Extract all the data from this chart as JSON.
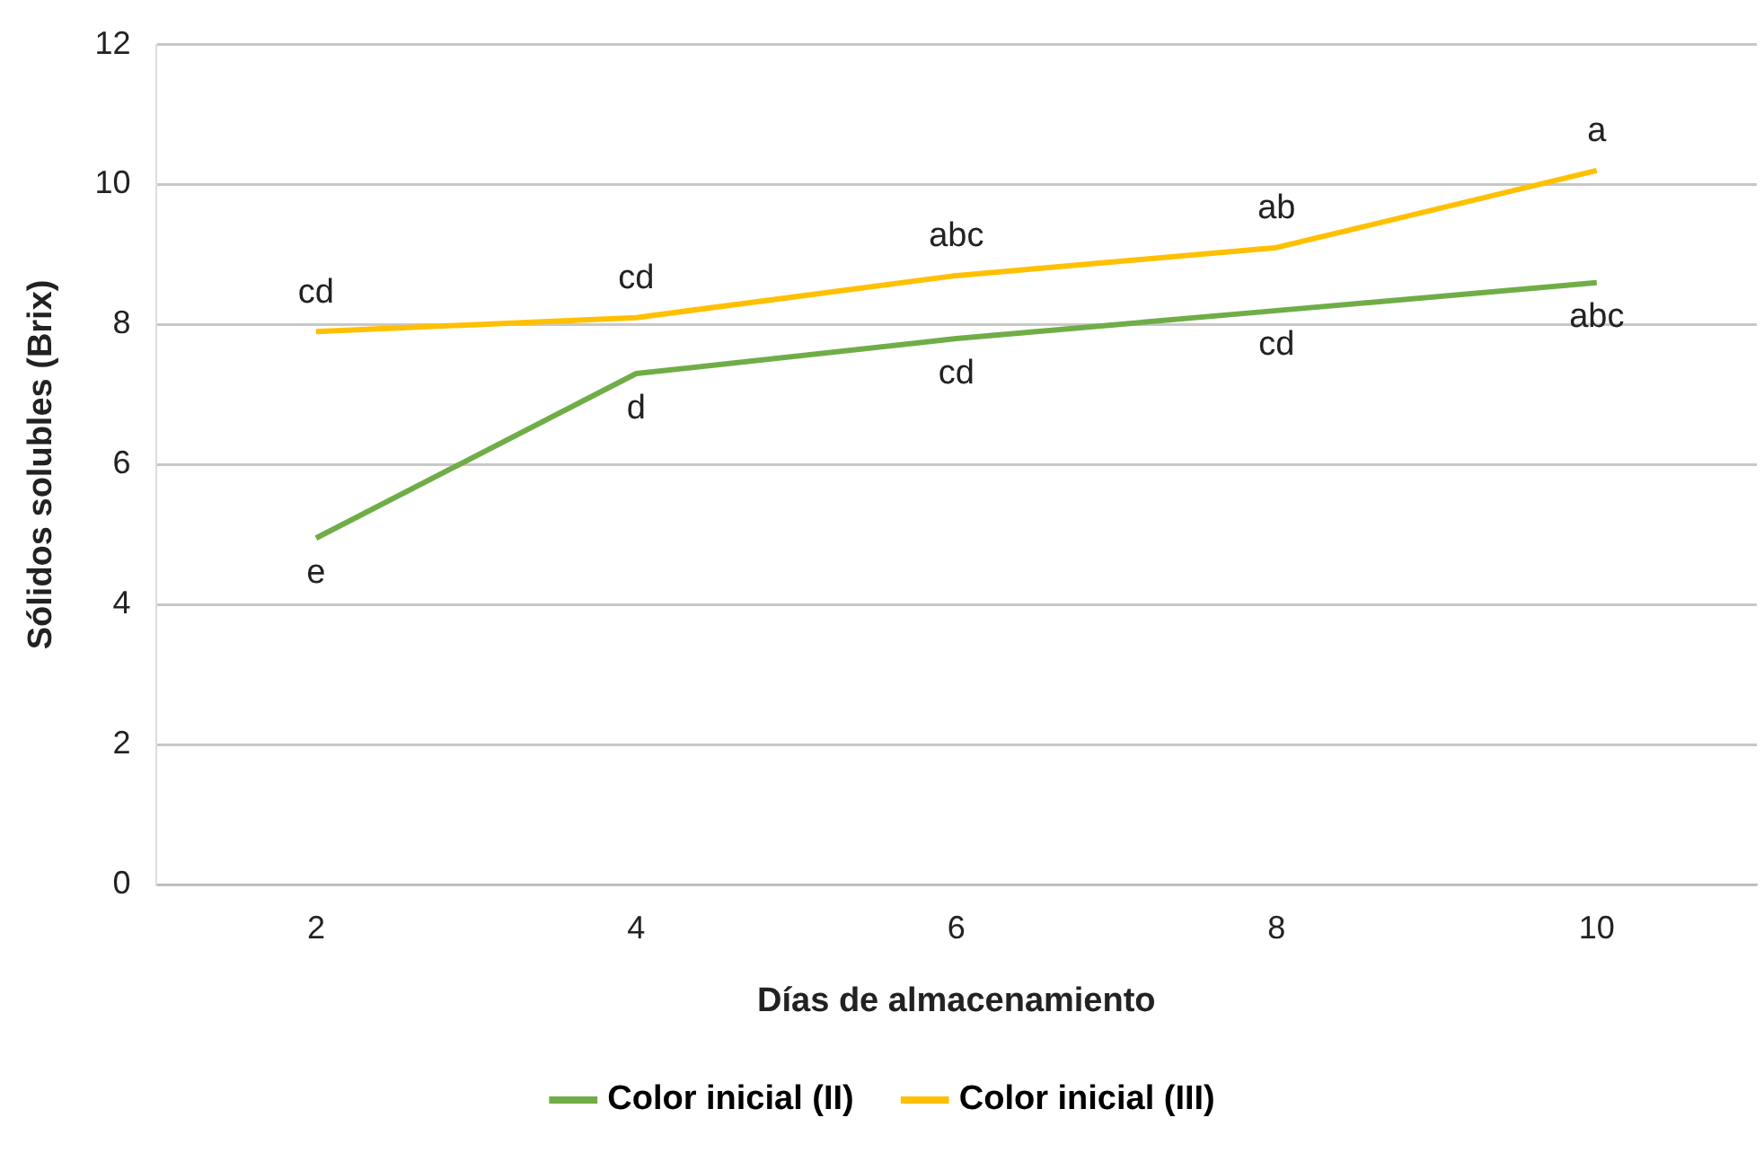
{
  "chart_data": {
    "type": "line",
    "xlabel": "Días de almacenamiento",
    "ylabel": "Sólidos solubles (Brix)",
    "categories": [
      "2",
      "4",
      "6",
      "8",
      "10"
    ],
    "series": [
      {
        "name": "Color inicial (II)",
        "color": "#70ad47",
        "values": [
          4.95,
          7.3,
          7.8,
          8.2,
          8.6
        ]
      },
      {
        "name": "Color inicial (III)",
        "color": "#ffc000",
        "values": [
          7.9,
          8.1,
          8.7,
          9.1,
          10.2
        ]
      }
    ],
    "ylim": [
      0,
      12
    ],
    "yticks": [
      0,
      2,
      4,
      6,
      8,
      10,
      12
    ],
    "grid": "y",
    "legend": "bottom",
    "marker": "none",
    "line_style": "solid",
    "annotations": [
      {
        "text": "e",
        "x": "2",
        "y": 4.95
      },
      {
        "text": "d",
        "x": "4",
        "y": 7.3
      },
      {
        "text": "cd",
        "x": "6",
        "y": 7.8
      },
      {
        "text": "cd",
        "x": "8",
        "y": 8.2
      },
      {
        "text": "abc",
        "x": "10",
        "y": 8.6
      },
      {
        "text": "cd",
        "x": "2",
        "y": 7.9
      },
      {
        "text": "cd",
        "x": "4",
        "y": 8.1
      },
      {
        "text": "abc",
        "x": "6",
        "y": 8.7
      },
      {
        "text": "ab",
        "x": "8",
        "y": 9.1
      },
      {
        "text": "a",
        "x": "10",
        "y": 10.2
      }
    ]
  }
}
